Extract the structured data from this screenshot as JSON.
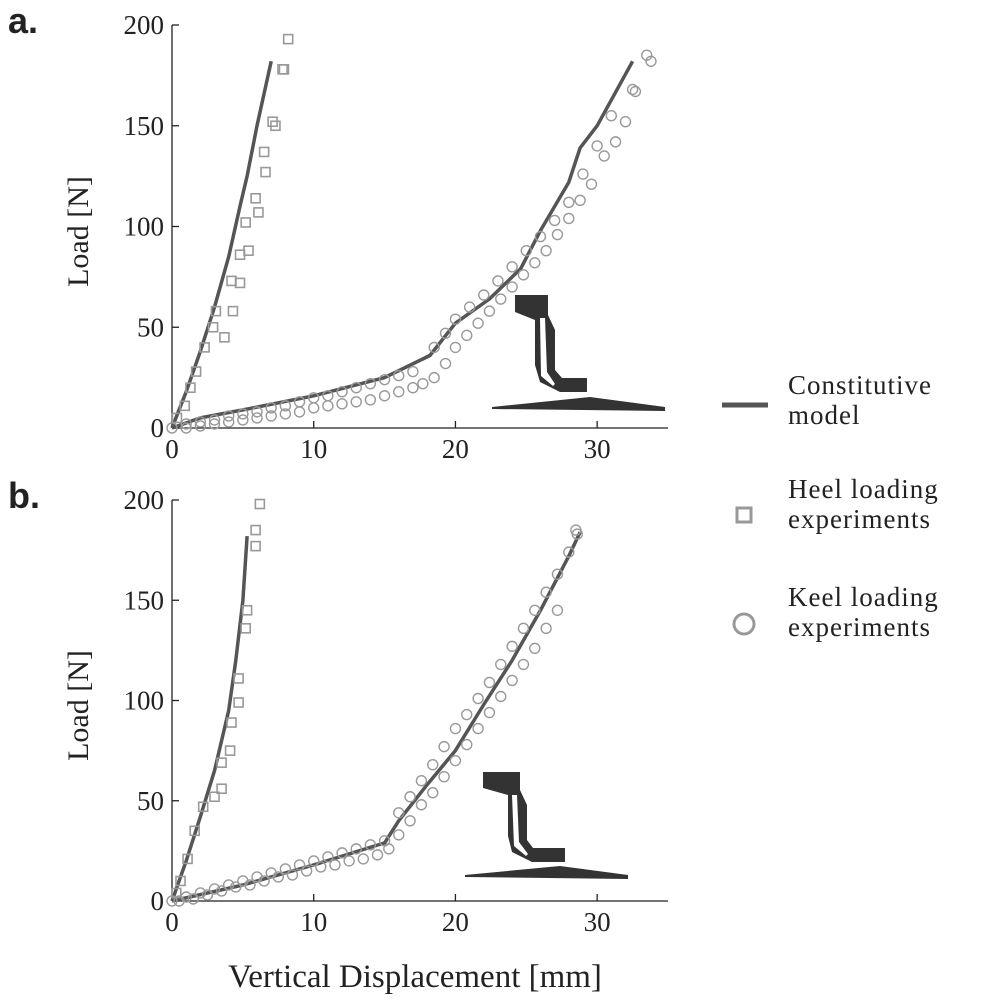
{
  "chart_data": [
    {
      "type": "line",
      "label": "a.",
      "ylabel": "Load [N]",
      "xlim": [
        0,
        35
      ],
      "ylim": [
        0,
        200
      ],
      "xticks": [
        0,
        10,
        20,
        30
      ],
      "yticks": [
        0,
        50,
        100,
        150,
        200
      ],
      "legend": "right",
      "series": [
        {
          "name": "Constitutive model",
          "marker": "line",
          "color": "#555555",
          "x": [
            0,
            1,
            2,
            3,
            4,
            4.8,
            5.3,
            6,
            7,
            null,
            0,
            2,
            5,
            10,
            15,
            18.2,
            20,
            22.4,
            24.6,
            26,
            28,
            28.8,
            30,
            32.5
          ],
          "values": [
            0,
            18,
            38,
            60,
            85,
            110,
            125,
            150,
            182,
            null,
            0,
            5,
            9,
            16,
            25,
            36,
            52,
            64,
            79,
            98,
            122,
            139,
            150,
            182
          ]
        },
        {
          "name": "Heel loading experiments",
          "marker": "square",
          "color": "#999999",
          "x": [
            0.35,
            0.9,
            1.3,
            1.7,
            2.3,
            2.9,
            3.1,
            3.7,
            4.3,
            4.2,
            4.8,
            4.8,
            5.4,
            5.2,
            6.1,
            5.9,
            6.6,
            6.5,
            7.1,
            7.3,
            7.8,
            7.9,
            8.2
          ],
          "values": [
            5,
            11,
            20,
            28,
            40,
            50,
            58,
            45,
            58,
            73,
            72,
            86,
            88,
            102,
            107,
            114,
            127,
            137,
            152,
            150,
            178,
            178,
            193
          ]
        },
        {
          "name": "Keel loading experiments",
          "marker": "circle",
          "color": "#999999",
          "x": [
            0,
            1,
            2,
            3,
            4,
            5,
            6,
            7,
            8,
            9,
            10,
            11,
            12,
            13,
            14,
            15,
            16,
            17,
            18.5,
            19.3,
            20,
            21,
            22,
            23,
            24,
            25,
            26,
            27,
            28,
            29,
            30,
            31,
            32.5,
            33.5,
            1,
            2,
            3,
            4,
            5,
            6,
            7,
            8,
            9,
            10,
            11,
            12,
            13,
            14,
            15,
            16,
            17,
            17.7,
            18.5,
            19.3,
            20,
            20.8,
            21.6,
            22.4,
            23.2,
            24,
            24.8,
            25.6,
            26.4,
            27.2,
            28,
            28.8,
            29.6,
            30.5,
            31.3,
            32,
            32.7,
            33.8
          ],
          "values": [
            0,
            2,
            3,
            4,
            6,
            7,
            8,
            10,
            11,
            13,
            15,
            16,
            18,
            20,
            22,
            24,
            26,
            28,
            40,
            47,
            54,
            60,
            66,
            73,
            80,
            88,
            95,
            103,
            112,
            126,
            140,
            155,
            168,
            185,
            0,
            1,
            2,
            3,
            4,
            5,
            6,
            7,
            8,
            10,
            11,
            12,
            13,
            14,
            16,
            18,
            20,
            22,
            25,
            32,
            40,
            46,
            52,
            58,
            64,
            70,
            76,
            82,
            88,
            96,
            104,
            113,
            121,
            135,
            142,
            152,
            167,
            182
          ]
        }
      ]
    },
    {
      "type": "line",
      "label": "b.",
      "ylabel": "Load [N]",
      "xlabel": "Vertical Displacement [mm]",
      "xlim": [
        0,
        35
      ],
      "ylim": [
        0,
        200
      ],
      "xticks": [
        0,
        10,
        20,
        30
      ],
      "yticks": [
        0,
        50,
        100,
        150,
        200
      ],
      "series": [
        {
          "marker": "line",
          "color": "#555555",
          "x": [
            0,
            1,
            2,
            3,
            4,
            4.5,
            5,
            5.3,
            null,
            0,
            5,
            10,
            15,
            16,
            18,
            20,
            22,
            24,
            26,
            28,
            28.8
          ],
          "values": [
            0,
            20,
            42,
            65,
            95,
            120,
            150,
            182,
            null,
            0,
            8,
            18,
            29,
            40,
            58,
            75,
            98,
            120,
            145,
            172,
            184
          ]
        },
        {
          "marker": "square",
          "color": "#999999",
          "x": [
            0.3,
            0.6,
            1.1,
            1.6,
            2.2,
            3,
            3.5,
            3.5,
            4.1,
            4.2,
            4.7,
            4.7,
            5.2,
            5.3,
            5.9,
            5.9,
            6.2
          ],
          "values": [
            4,
            10,
            21,
            35,
            47,
            52,
            56,
            69,
            75,
            89,
            99,
            111,
            136,
            145,
            177,
            185,
            198
          ]
        },
        {
          "marker": "circle",
          "color": "#999999",
          "x": [
            0,
            1,
            2,
            3,
            4,
            5,
            6,
            7,
            8,
            9,
            10,
            11,
            12,
            13,
            14,
            15,
            16,
            16.8,
            17.6,
            18.4,
            19.2,
            20,
            20.8,
            21.6,
            22.4,
            23.2,
            24,
            24.8,
            25.6,
            26.4,
            27.2,
            28,
            28.5,
            0.5,
            1.5,
            2.5,
            3.5,
            4.5,
            5.5,
            6.5,
            7.5,
            8.5,
            9.5,
            10.5,
            11.5,
            12.5,
            13.5,
            14.5,
            15.3,
            16,
            16.8,
            17.6,
            18.4,
            19.2,
            20,
            20.8,
            21.6,
            22.4,
            23.2,
            24,
            24.8,
            25.6,
            26.4,
            27.2,
            28.6
          ],
          "values": [
            0,
            2,
            4,
            6,
            8,
            10,
            12,
            14,
            16,
            18,
            20,
            22,
            24,
            26,
            28,
            30,
            44,
            52,
            60,
            68,
            77,
            86,
            93,
            101,
            109,
            118,
            127,
            136,
            145,
            154,
            163,
            174,
            185,
            0,
            1,
            3,
            5,
            7,
            8,
            10,
            12,
            13,
            15,
            17,
            18,
            20,
            21,
            23,
            26,
            33,
            40,
            48,
            54,
            62,
            70,
            78,
            86,
            94,
            102,
            110,
            118,
            126,
            136,
            145,
            183
          ]
        }
      ]
    }
  ]
}
